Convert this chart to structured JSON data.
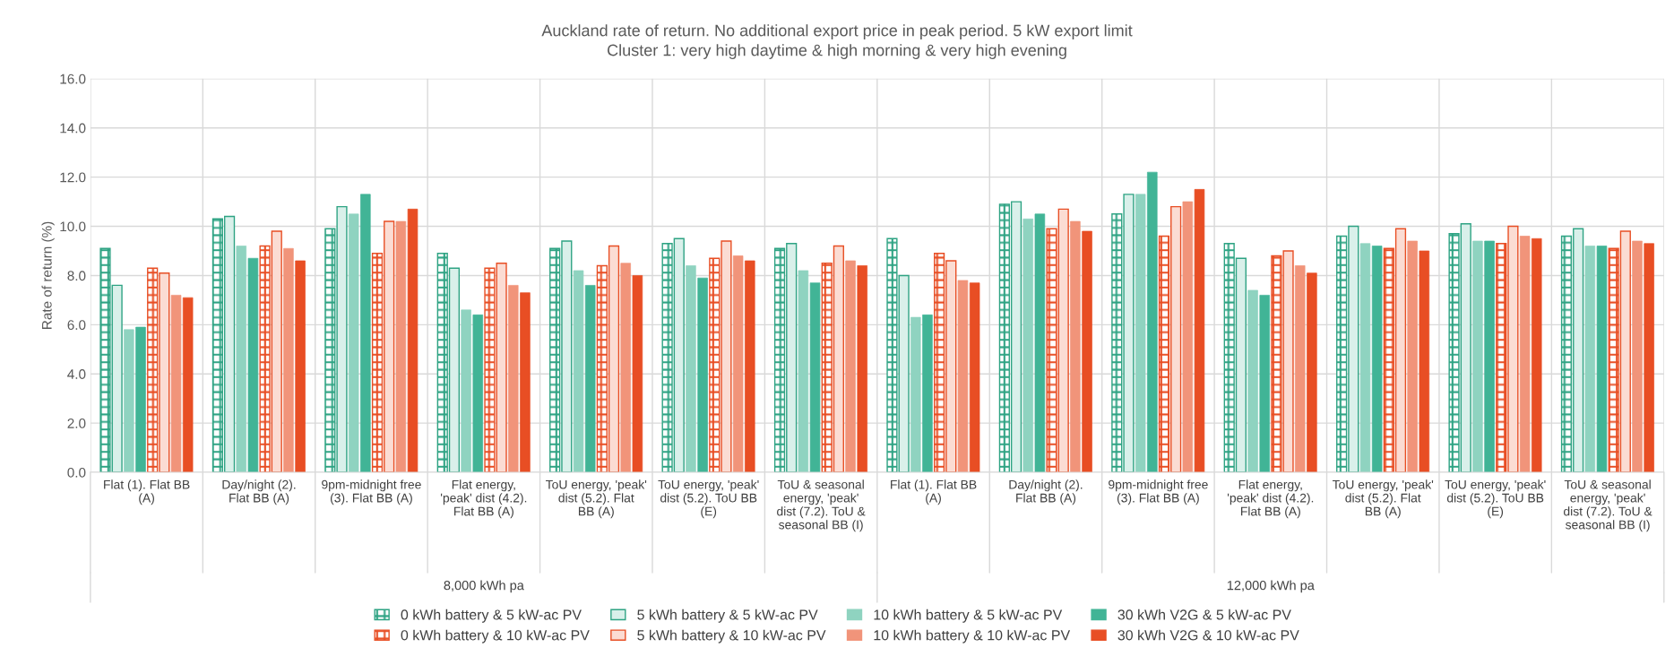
{
  "chart_data": {
    "type": "bar",
    "title": "Auckland rate of return. No additional export price in peak period. 5 kW export limit",
    "subtitle": "Cluster 1: very high daytime & high morning & very high evening",
    "ylabel": "Rate of return (%)",
    "categories": [
      "Flat (1). Flat BB (A)",
      "Day/night (2). Flat BB (A)",
      "9pm-midnight free (3). Flat BB (A)",
      "Flat energy, 'peak' dist (4.2). Flat BB (A)",
      "ToU energy, 'peak' dist (5.2). Flat BB (A)",
      "ToU energy, 'peak' dist (5.2). ToU BB (E)",
      "ToU & seasonal energy, 'peak' dist (7.2). ToU & seasonal BB (I)",
      "Flat (1). Flat BB (A)",
      "Day/night (2). Flat BB (A)",
      "9pm-midnight free (3). Flat BB (A)",
      "Flat energy, 'peak' dist (4.2). Flat BB (A)",
      "ToU energy, 'peak' dist (5.2). Flat BB (A)",
      "ToU energy, 'peak' dist (5.2). ToU BB (E)",
      "ToU & seasonal energy, 'peak' dist (7.2). ToU & seasonal BB (I)"
    ],
    "annotations": [
      "8,000 kWh pa",
      "12,000 kWh pa"
    ],
    "series": [
      {
        "name": "0 kWh battery & 5 kW-ac PV",
        "color": "#2ea383",
        "values": [
          9.1,
          10.3,
          9.9,
          8.9,
          9.1,
          9.3,
          9.1,
          9.5,
          10.9,
          10.5,
          9.3,
          9.6,
          9.7,
          9.6
        ]
      },
      {
        "name": "5 kWh battery & 5 kW-ac PV",
        "color": "#d9f0ea",
        "values": [
          7.6,
          10.4,
          10.8,
          8.3,
          9.4,
          9.5,
          9.3,
          8.0,
          11.0,
          11.3,
          8.7,
          10.0,
          10.1,
          9.9
        ]
      },
      {
        "name": "10 kWh battery & 5 kW-ac PV",
        "color": "#8fd3c0",
        "values": [
          5.8,
          9.2,
          10.5,
          6.6,
          8.2,
          8.4,
          8.2,
          6.3,
          10.3,
          11.3,
          7.4,
          9.3,
          9.4,
          9.2
        ]
      },
      {
        "name": "30 kWh V2G & 5 kW-ac PV",
        "color": "#41b496",
        "values": [
          5.9,
          8.7,
          11.3,
          6.4,
          7.6,
          7.9,
          7.7,
          6.4,
          10.5,
          12.2,
          7.2,
          9.2,
          9.4,
          9.2
        ]
      },
      {
        "name": "0 kWh battery & 10 kW-ac PV",
        "color": "#e84e24",
        "values": [
          8.3,
          9.2,
          8.9,
          8.3,
          8.4,
          8.7,
          8.5,
          8.9,
          9.9,
          9.6,
          8.8,
          9.1,
          9.3,
          9.1
        ]
      },
      {
        "name": "5 kWh battery & 10 kW-ac PV",
        "color": "#fbdcd3",
        "values": [
          8.1,
          9.8,
          10.2,
          8.5,
          9.2,
          9.4,
          9.2,
          8.6,
          10.7,
          10.8,
          9.0,
          9.9,
          10.0,
          9.8
        ]
      },
      {
        "name": "10 kWh battery & 10 kW-ac PV",
        "color": "#f1947a",
        "values": [
          7.2,
          9.1,
          10.2,
          7.6,
          8.5,
          8.8,
          8.6,
          7.8,
          10.2,
          11.0,
          8.4,
          9.4,
          9.6,
          9.4
        ]
      },
      {
        "name": "30 kWh V2G & 10 kW-ac PV",
        "color": "#e84e24",
        "values": [
          7.1,
          8.6,
          10.7,
          7.3,
          8.0,
          8.6,
          8.4,
          7.7,
          9.8,
          11.5,
          8.1,
          9.0,
          9.5,
          9.3
        ]
      }
    ],
    "ylim": [
      0,
      16
    ],
    "yticks": [
      {
        "value": 0,
        "label": "0.0"
      },
      {
        "value": 2,
        "label": "2.0"
      },
      {
        "value": 4,
        "label": "4.0"
      },
      {
        "value": 6,
        "label": "6.0"
      },
      {
        "value": 8,
        "label": "8.0"
      },
      {
        "value": 10,
        "label": "10.0"
      },
      {
        "value": 12,
        "label": "12.0"
      },
      {
        "value": 14,
        "label": "14.0"
      },
      {
        "value": 16,
        "label": "16.0"
      }
    ],
    "grid": "y",
    "legend": "bottom"
  }
}
